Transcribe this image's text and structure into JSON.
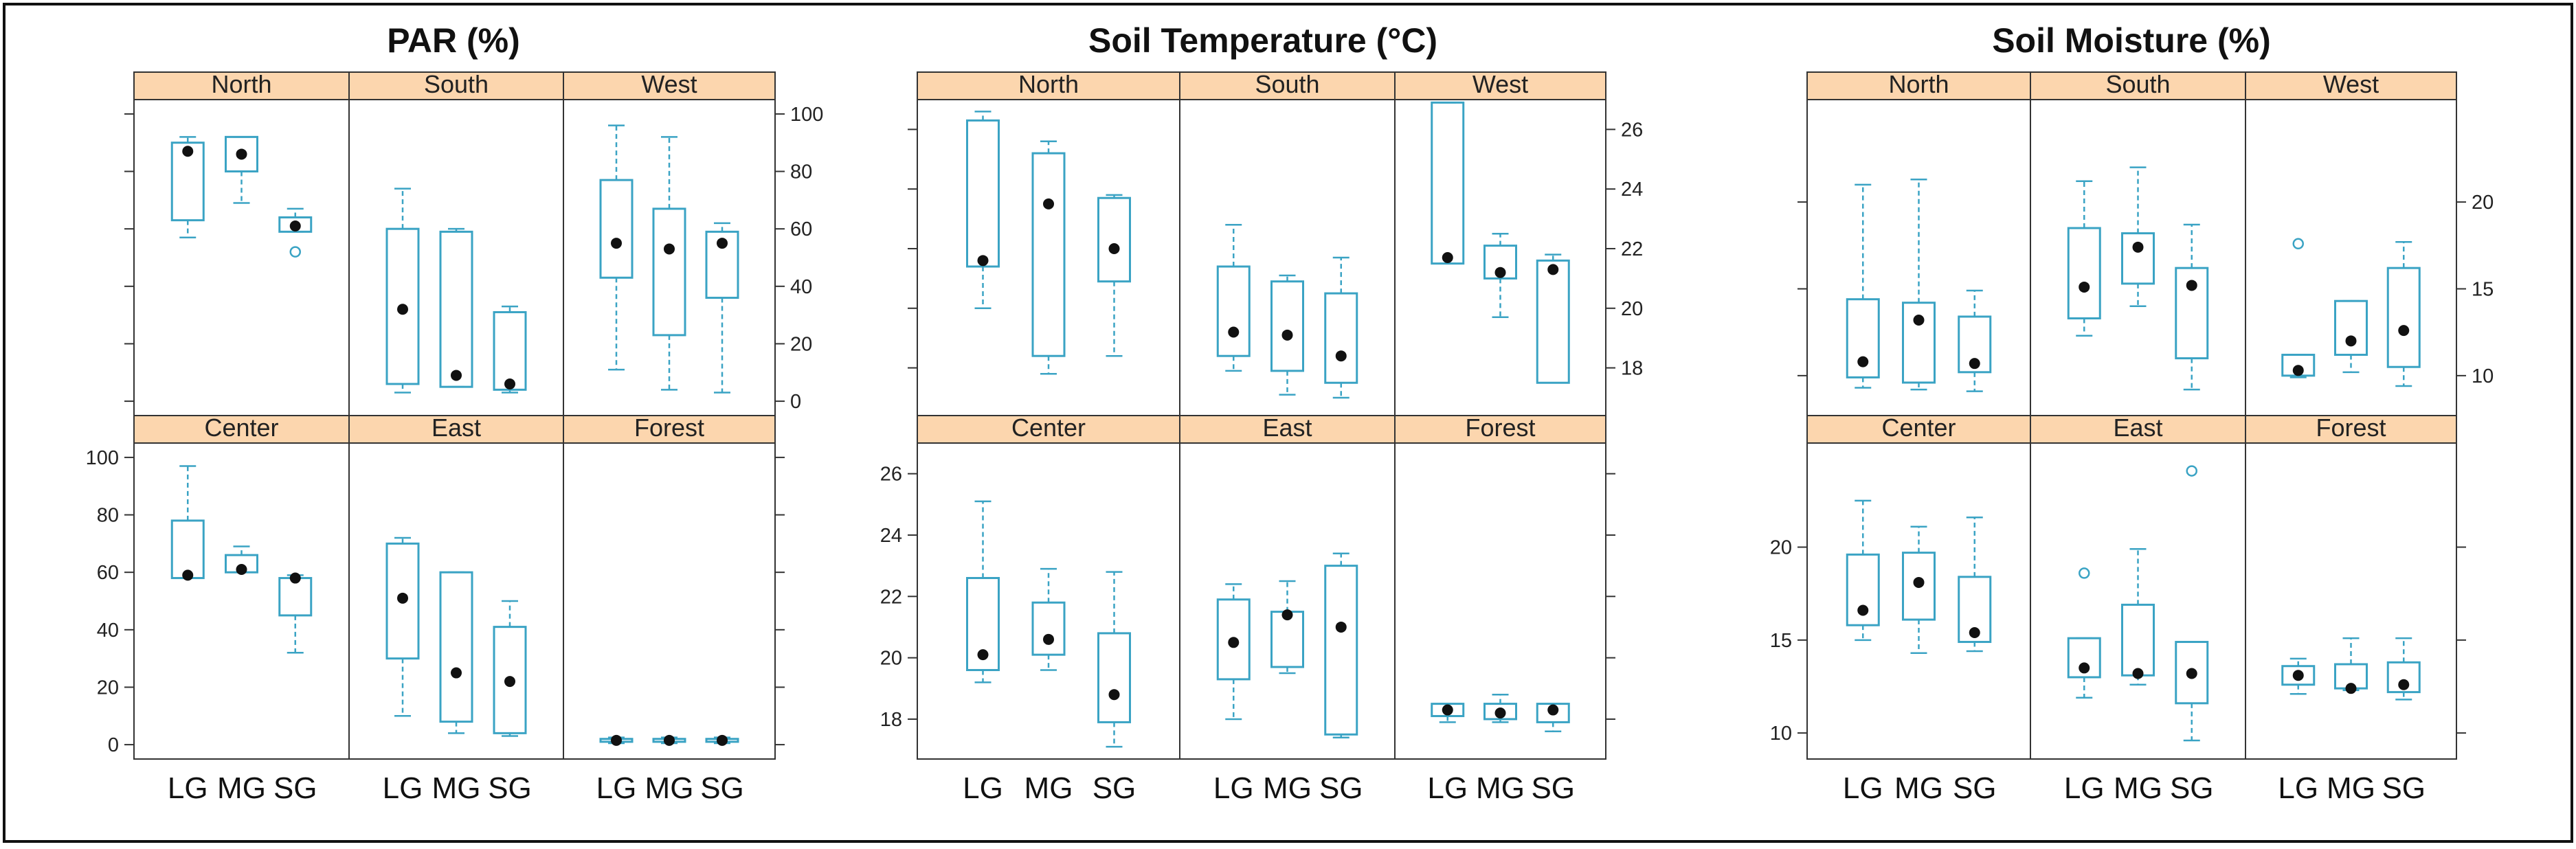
{
  "figure": {
    "background": "#ffffff",
    "border_color": "#111111"
  },
  "style": {
    "box_color": "#3aa3c4",
    "median_color": "#111111",
    "strip_fill": "#fcd6ae",
    "panel_border": "#333333"
  },
  "chart_data": [
    {
      "id": "par",
      "type": "boxplot",
      "title": "PAR (%)",
      "categories": [
        "LG",
        "MG",
        "SG"
      ],
      "row1_ylim": [
        -5,
        105
      ],
      "row2_ylim": [
        -5,
        105
      ],
      "row1_ticks": [
        0,
        20,
        40,
        60,
        80,
        100
      ],
      "row2_ticks": [
        0,
        20,
        40,
        60,
        80,
        100
      ],
      "row1_axis_side": "right",
      "row2_axis_side": "left",
      "panels": [
        {
          "site": "North",
          "groups": [
            {
              "cat": "LG",
              "wlo": 57,
              "q1": 63,
              "med": 87,
              "q3": 90,
              "whi": 92,
              "out": []
            },
            {
              "cat": "MG",
              "wlo": 69,
              "q1": 80,
              "med": 86,
              "q3": 92,
              "whi": 92,
              "out": []
            },
            {
              "cat": "SG",
              "wlo": 59,
              "q1": 59,
              "med": 61,
              "q3": 64,
              "whi": 67,
              "out": [
                52
              ]
            }
          ]
        },
        {
          "site": "South",
          "groups": [
            {
              "cat": "LG",
              "wlo": 3,
              "q1": 6,
              "med": 32,
              "q3": 60,
              "whi": 74,
              "out": []
            },
            {
              "cat": "MG",
              "wlo": 5,
              "q1": 5,
              "med": 9,
              "q3": 59,
              "whi": 60,
              "out": []
            },
            {
              "cat": "SG",
              "wlo": 3,
              "q1": 4,
              "med": 6,
              "q3": 31,
              "whi": 33,
              "out": []
            }
          ]
        },
        {
          "site": "West",
          "groups": [
            {
              "cat": "LG",
              "wlo": 11,
              "q1": 43,
              "med": 55,
              "q3": 77,
              "whi": 96,
              "out": []
            },
            {
              "cat": "MG",
              "wlo": 4,
              "q1": 23,
              "med": 53,
              "q3": 67,
              "whi": 92,
              "out": []
            },
            {
              "cat": "SG",
              "wlo": 3,
              "q1": 36,
              "med": 55,
              "q3": 59,
              "whi": 62,
              "out": []
            }
          ]
        },
        {
          "site": "Center",
          "groups": [
            {
              "cat": "LG",
              "wlo": 58,
              "q1": 58,
              "med": 59,
              "q3": 78,
              "whi": 97,
              "out": []
            },
            {
              "cat": "MG",
              "wlo": 60,
              "q1": 60,
              "med": 61,
              "q3": 66,
              "whi": 69,
              "out": []
            },
            {
              "cat": "SG",
              "wlo": 32,
              "q1": 45,
              "med": 58,
              "q3": 58,
              "whi": 59,
              "out": []
            }
          ]
        },
        {
          "site": "East",
          "groups": [
            {
              "cat": "LG",
              "wlo": 10,
              "q1": 30,
              "med": 51,
              "q3": 70,
              "whi": 72,
              "out": []
            },
            {
              "cat": "MG",
              "wlo": 4,
              "q1": 8,
              "med": 25,
              "q3": 60,
              "whi": 60,
              "out": []
            },
            {
              "cat": "SG",
              "wlo": 3,
              "q1": 4,
              "med": 22,
              "q3": 41,
              "whi": 50,
              "out": []
            }
          ]
        },
        {
          "site": "Forest",
          "groups": [
            {
              "cat": "LG",
              "wlo": 0.5,
              "q1": 1,
              "med": 1.5,
              "q3": 2,
              "whi": 2.5,
              "out": []
            },
            {
              "cat": "MG",
              "wlo": 0.5,
              "q1": 1,
              "med": 1.5,
              "q3": 2,
              "whi": 2.5,
              "out": []
            },
            {
              "cat": "SG",
              "wlo": 0.5,
              "q1": 1,
              "med": 1.5,
              "q3": 2,
              "whi": 2.5,
              "out": []
            }
          ]
        }
      ]
    },
    {
      "id": "soil-temperature",
      "type": "boxplot",
      "title": "Soil Temperature (°C)",
      "categories": [
        "LG",
        "MG",
        "SG"
      ],
      "row1_ylim": [
        16.4,
        27.0
      ],
      "row2_ylim": [
        16.7,
        27.0
      ],
      "row1_ticks": [
        18,
        20,
        22,
        24,
        26
      ],
      "row2_ticks": [
        18,
        20,
        22,
        24,
        26
      ],
      "row1_axis_side": "right",
      "row2_axis_side": "left",
      "panels": [
        {
          "site": "North",
          "groups": [
            {
              "cat": "LG",
              "wlo": 20.0,
              "q1": 21.4,
              "med": 21.6,
              "q3": 26.3,
              "whi": 26.6,
              "out": []
            },
            {
              "cat": "MG",
              "wlo": 17.8,
              "q1": 18.4,
              "med": 23.5,
              "q3": 25.2,
              "whi": 25.6,
              "out": []
            },
            {
              "cat": "SG",
              "wlo": 18.4,
              "q1": 20.9,
              "med": 22.0,
              "q3": 23.7,
              "whi": 23.8,
              "out": []
            }
          ]
        },
        {
          "site": "South",
          "groups": [
            {
              "cat": "LG",
              "wlo": 17.9,
              "q1": 18.4,
              "med": 19.2,
              "q3": 21.4,
              "whi": 22.8,
              "out": []
            },
            {
              "cat": "MG",
              "wlo": 17.1,
              "q1": 17.9,
              "med": 19.1,
              "q3": 20.9,
              "whi": 21.1,
              "out": []
            },
            {
              "cat": "SG",
              "wlo": 17.0,
              "q1": 17.5,
              "med": 18.4,
              "q3": 20.5,
              "whi": 21.7,
              "out": []
            }
          ]
        },
        {
          "site": "West",
          "groups": [
            {
              "cat": "LG",
              "wlo": 21.5,
              "q1": 21.5,
              "med": 21.7,
              "q3": 26.9,
              "whi": 26.9,
              "out": []
            },
            {
              "cat": "MG",
              "wlo": 19.7,
              "q1": 21.0,
              "med": 21.2,
              "q3": 22.1,
              "whi": 22.5,
              "out": []
            },
            {
              "cat": "SG",
              "wlo": 17.5,
              "q1": 17.5,
              "med": 21.3,
              "q3": 21.6,
              "whi": 21.8,
              "out": []
            }
          ]
        },
        {
          "site": "Center",
          "groups": [
            {
              "cat": "LG",
              "wlo": 19.2,
              "q1": 19.6,
              "med": 20.1,
              "q3": 22.6,
              "whi": 25.1,
              "out": []
            },
            {
              "cat": "MG",
              "wlo": 19.6,
              "q1": 20.1,
              "med": 20.6,
              "q3": 21.8,
              "whi": 22.9,
              "out": []
            },
            {
              "cat": "SG",
              "wlo": 17.1,
              "q1": 17.9,
              "med": 18.8,
              "q3": 20.8,
              "whi": 22.8,
              "out": []
            }
          ]
        },
        {
          "site": "East",
          "groups": [
            {
              "cat": "LG",
              "wlo": 18.0,
              "q1": 19.3,
              "med": 20.5,
              "q3": 21.9,
              "whi": 22.4,
              "out": []
            },
            {
              "cat": "MG",
              "wlo": 19.5,
              "q1": 19.7,
              "med": 21.4,
              "q3": 21.5,
              "whi": 22.5,
              "out": []
            },
            {
              "cat": "SG",
              "wlo": 17.4,
              "q1": 17.5,
              "med": 21.0,
              "q3": 23.0,
              "whi": 23.4,
              "out": []
            }
          ]
        },
        {
          "site": "Forest",
          "groups": [
            {
              "cat": "LG",
              "wlo": 17.9,
              "q1": 18.1,
              "med": 18.3,
              "q3": 18.5,
              "whi": 18.5,
              "out": []
            },
            {
              "cat": "MG",
              "wlo": 17.9,
              "q1": 18.0,
              "med": 18.2,
              "q3": 18.5,
              "whi": 18.8,
              "out": []
            },
            {
              "cat": "SG",
              "wlo": 17.6,
              "q1": 17.9,
              "med": 18.3,
              "q3": 18.5,
              "whi": 18.5,
              "out": []
            }
          ]
        }
      ]
    },
    {
      "id": "soil-moisture",
      "type": "boxplot",
      "title": "Soil Moisture (%)",
      "categories": [
        "LG",
        "MG",
        "SG"
      ],
      "row1_ylim": [
        7.7,
        25.9
      ],
      "row2_ylim": [
        8.6,
        25.6
      ],
      "row1_ticks": [
        10,
        15,
        20
      ],
      "row2_ticks": [
        10,
        15,
        20
      ],
      "row1_axis_side": "right",
      "row2_axis_side": "left",
      "panels": [
        {
          "site": "North",
          "groups": [
            {
              "cat": "LG",
              "wlo": 9.3,
              "q1": 9.9,
              "med": 10.8,
              "q3": 14.4,
              "whi": 21.0,
              "out": []
            },
            {
              "cat": "MG",
              "wlo": 9.2,
              "q1": 9.6,
              "med": 13.2,
              "q3": 14.2,
              "whi": 21.3,
              "out": []
            },
            {
              "cat": "SG",
              "wlo": 9.1,
              "q1": 10.2,
              "med": 10.7,
              "q3": 13.4,
              "whi": 14.9,
              "out": []
            }
          ]
        },
        {
          "site": "South",
          "groups": [
            {
              "cat": "LG",
              "wlo": 12.3,
              "q1": 13.3,
              "med": 15.1,
              "q3": 18.5,
              "whi": 21.2,
              "out": []
            },
            {
              "cat": "MG",
              "wlo": 14.0,
              "q1": 15.3,
              "med": 17.4,
              "q3": 18.2,
              "whi": 22.0,
              "out": []
            },
            {
              "cat": "SG",
              "wlo": 9.2,
              "q1": 11.0,
              "med": 15.2,
              "q3": 16.2,
              "whi": 18.7,
              "out": []
            }
          ]
        },
        {
          "site": "West",
          "groups": [
            {
              "cat": "LG",
              "wlo": 9.9,
              "q1": 10.0,
              "med": 10.3,
              "q3": 11.2,
              "whi": 11.2,
              "out": [
                17.6
              ]
            },
            {
              "cat": "MG",
              "wlo": 10.2,
              "q1": 11.2,
              "med": 12.0,
              "q3": 14.3,
              "whi": 14.3,
              "out": []
            },
            {
              "cat": "SG",
              "wlo": 9.4,
              "q1": 10.5,
              "med": 12.6,
              "q3": 16.2,
              "whi": 17.7,
              "out": []
            }
          ]
        },
        {
          "site": "Center",
          "groups": [
            {
              "cat": "LG",
              "wlo": 15.0,
              "q1": 15.8,
              "med": 16.6,
              "q3": 19.6,
              "whi": 22.5,
              "out": []
            },
            {
              "cat": "MG",
              "wlo": 14.3,
              "q1": 16.1,
              "med": 18.1,
              "q3": 19.7,
              "whi": 21.1,
              "out": []
            },
            {
              "cat": "SG",
              "wlo": 14.4,
              "q1": 14.9,
              "med": 15.4,
              "q3": 18.4,
              "whi": 21.6,
              "out": []
            }
          ]
        },
        {
          "site": "East",
          "groups": [
            {
              "cat": "LG",
              "wlo": 11.9,
              "q1": 13.0,
              "med": 13.5,
              "q3": 15.1,
              "whi": 15.1,
              "out": [
                18.6
              ]
            },
            {
              "cat": "MG",
              "wlo": 12.6,
              "q1": 13.1,
              "med": 13.2,
              "q3": 16.9,
              "whi": 19.9,
              "out": []
            },
            {
              "cat": "SG",
              "wlo": 9.6,
              "q1": 11.6,
              "med": 13.2,
              "q3": 14.9,
              "whi": 14.9,
              "out": [
                24.1
              ]
            }
          ]
        },
        {
          "site": "Forest",
          "groups": [
            {
              "cat": "LG",
              "wlo": 12.1,
              "q1": 12.6,
              "med": 13.1,
              "q3": 13.6,
              "whi": 14.0,
              "out": []
            },
            {
              "cat": "MG",
              "wlo": 12.3,
              "q1": 12.4,
              "med": 12.4,
              "q3": 13.7,
              "whi": 15.1,
              "out": []
            },
            {
              "cat": "SG",
              "wlo": 11.8,
              "q1": 12.2,
              "med": 12.6,
              "q3": 13.8,
              "whi": 15.1,
              "out": []
            }
          ]
        }
      ]
    }
  ]
}
